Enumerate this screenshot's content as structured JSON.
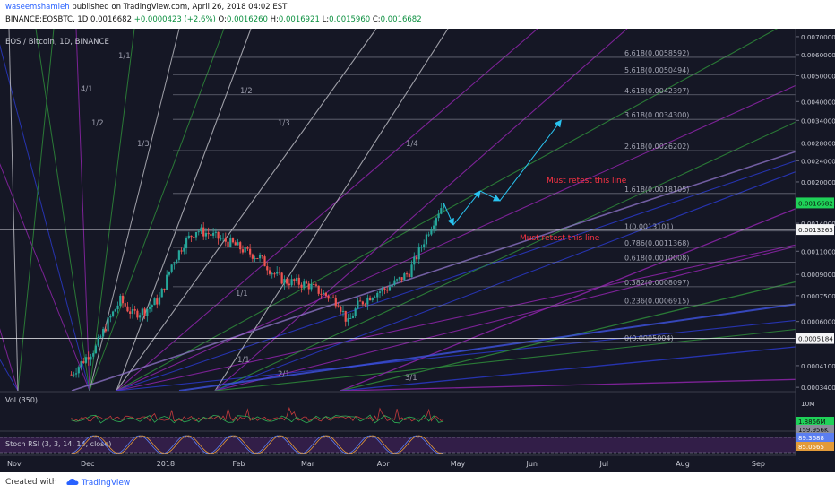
{
  "header": {
    "author": "waseemshamieh",
    "published": "published on TradingView.com, April 26, 2018 04:02 EST",
    "symbol": "BINANCE:EOSBTC, 1D",
    "last": "0.0016682",
    "change": "+0.0000423 (+2.6%)",
    "o_label": "O:",
    "o": "0.0016260",
    "h_label": "H:",
    "h": "0.0016921",
    "l_label": "L:",
    "l": "0.0015960",
    "c_label": "C:",
    "c": "0.0016682"
  },
  "pane_title": "EOS / Bitcoin, 1D, BINANCE",
  "colors": {
    "background": "#151725",
    "up": "#26a69a",
    "down": "#ef5350",
    "fib": "#8a8c9a",
    "annotation": "#ff3344",
    "arrow": "#29c3f0",
    "last_price": "#1fd158",
    "fan_purple": "#8e24aa",
    "fan_blue": "#2a39c8",
    "fan_green": "#2e8b3a",
    "fan_white": "#b8b8c0"
  },
  "fan_labels": [
    "1/1",
    "1/2",
    "1/3",
    "1/4",
    "1/1",
    "1/1",
    "2/1",
    "3/1",
    "4/1",
    "1/2",
    "1/3"
  ],
  "annotations": [
    "Must retest this line",
    "Must retest this line"
  ],
  "price_badges": [
    "0.0016682",
    "0.0013263",
    "0.0005184"
  ],
  "chart_data": {
    "type": "candlestick",
    "title": "EOS / Bitcoin, 1D, BINANCE",
    "y_scale": "log",
    "ylim": [
      0.00033,
      0.0075
    ],
    "xlabel": "",
    "ylabel": "",
    "x_ticks": [
      "Nov",
      "Dec",
      "2018",
      "Feb",
      "Mar",
      "Apr",
      "May",
      "Jun",
      "Jul",
      "Aug",
      "Sep"
    ],
    "y_ticks": [
      0.007,
      0.006,
      0.005,
      0.004,
      0.0034,
      0.0028,
      0.0024,
      0.002,
      0.0014,
      0.0011,
      0.0009,
      0.00075,
      0.0006,
      0.00041,
      0.00034
    ],
    "series_close": [
      {
        "date": "2017-11-25",
        "close": 0.00038
      },
      {
        "date": "2017-11-30",
        "close": 0.00043
      },
      {
        "date": "2017-12-05",
        "close": 0.00048
      },
      {
        "date": "2017-12-10",
        "close": 0.0006
      },
      {
        "date": "2017-12-15",
        "close": 0.00072
      },
      {
        "date": "2017-12-20",
        "close": 0.00064
      },
      {
        "date": "2017-12-25",
        "close": 0.00066
      },
      {
        "date": "2017-12-31",
        "close": 0.00073
      },
      {
        "date": "2018-01-05",
        "close": 0.00098
      },
      {
        "date": "2018-01-10",
        "close": 0.00118
      },
      {
        "date": "2018-01-15",
        "close": 0.00132
      },
      {
        "date": "2018-01-20",
        "close": 0.00128
      },
      {
        "date": "2018-01-25",
        "close": 0.00122
      },
      {
        "date": "2018-01-30",
        "close": 0.00117
      },
      {
        "date": "2018-02-05",
        "close": 0.00109
      },
      {
        "date": "2018-02-10",
        "close": 0.00104
      },
      {
        "date": "2018-02-15",
        "close": 0.00092
      },
      {
        "date": "2018-02-20",
        "close": 0.00085
      },
      {
        "date": "2018-02-25",
        "close": 0.00084
      },
      {
        "date": "2018-03-02",
        "close": 0.00082
      },
      {
        "date": "2018-03-08",
        "close": 0.00076
      },
      {
        "date": "2018-03-14",
        "close": 0.00071
      },
      {
        "date": "2018-03-18",
        "close": 0.00059
      },
      {
        "date": "2018-03-22",
        "close": 0.00069
      },
      {
        "date": "2018-03-28",
        "close": 0.00076
      },
      {
        "date": "2018-04-03",
        "close": 0.0008
      },
      {
        "date": "2018-04-08",
        "close": 0.00086
      },
      {
        "date": "2018-04-12",
        "close": 0.00092
      },
      {
        "date": "2018-04-16",
        "close": 0.0011
      },
      {
        "date": "2018-04-20",
        "close": 0.00132
      },
      {
        "date": "2018-04-23",
        "close": 0.0015
      },
      {
        "date": "2018-04-26",
        "close": 0.00167
      }
    ],
    "fib_levels": [
      {
        "label": "0(0.0005004)",
        "value": 0.0005004
      },
      {
        "label": "0.236(0.0006915)",
        "value": 0.0006915
      },
      {
        "label": "0.382(0.0008097)",
        "value": 0.0008097
      },
      {
        "label": "0.618(0.0010008)",
        "value": 0.0010008
      },
      {
        "label": "0.786(0.0011368)",
        "value": 0.0011368
      },
      {
        "label": "1(0.0013101)",
        "value": 0.0013101
      },
      {
        "label": "1.618(0.0018105)",
        "value": 0.0018105
      },
      {
        "label": "2.618(0.0026202)",
        "value": 0.0026202
      },
      {
        "label": "3.618(0.0034300)",
        "value": 0.00343
      },
      {
        "label": "4.618(0.0042397)",
        "value": 0.0042397
      },
      {
        "label": "5.618(0.0050494)",
        "value": 0.0050494
      },
      {
        "label": "6.618(0.0058592)",
        "value": 0.0058592
      }
    ],
    "horizontal_lines": [
      0.0016682,
      0.0013263,
      0.0005184
    ],
    "projection_path": [
      {
        "date": "2018-04-26",
        "price": 0.00167
      },
      {
        "date": "2018-04-30",
        "price": 0.00138
      },
      {
        "date": "2018-05-11",
        "price": 0.00185
      },
      {
        "date": "2018-05-19",
        "price": 0.0017
      },
      {
        "date": "2018-06-13",
        "price": 0.0034
      }
    ],
    "volume": {
      "label": "Vol (350)",
      "y_ticks": [
        "10M"
      ],
      "badges": [
        "1.8856M",
        "159.956K"
      ]
    },
    "stoch_rsi": {
      "label": "Stoch RSI (3, 3, 14, 14, close)",
      "badges": [
        "89.3688",
        "85.0565"
      ]
    }
  },
  "footer": {
    "created_with": "Created with",
    "brand": "TradingView"
  }
}
